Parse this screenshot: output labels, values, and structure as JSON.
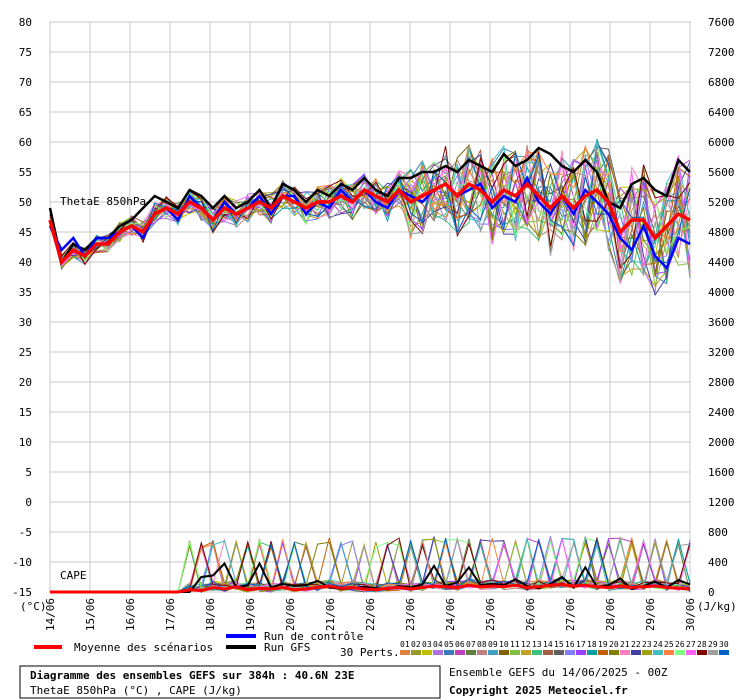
{
  "chart_data": {
    "type": "line",
    "left_axis": {
      "unit": "(°C)",
      "ticks": [
        80,
        75,
        70,
        65,
        60,
        55,
        50,
        45,
        40,
        35,
        30,
        25,
        20,
        15,
        10,
        5,
        0,
        -5,
        -10,
        -15
      ],
      "range": [
        -15,
        80
      ]
    },
    "right_axis": {
      "unit": "(J/kg)",
      "ticks": [
        7600,
        7200,
        6800,
        6400,
        6000,
        5600,
        5200,
        4800,
        4400,
        4000,
        3600,
        3200,
        2800,
        2400,
        2000,
        1600,
        1200,
        800,
        400,
        0
      ],
      "range": [
        0,
        7600
      ]
    },
    "x_labels": [
      "14/06",
      "15/06",
      "16/06",
      "17/06",
      "18/06",
      "19/06",
      "20/06",
      "21/06",
      "22/06",
      "23/06",
      "24/06",
      "25/06",
      "26/06",
      "27/06",
      "28/06",
      "29/06",
      "30/06"
    ],
    "thetae_label": "ThetaE 850hPa",
    "cape_label": "CAPE",
    "thetae_mean": [
      47,
      40,
      42,
      41,
      43,
      43,
      45,
      46,
      45,
      48,
      49,
      48,
      50,
      49,
      47,
      49,
      48,
      49,
      50,
      49,
      51,
      50,
      49,
      50,
      50,
      51,
      50,
      52,
      51,
      50,
      52,
      50,
      51,
      52,
      53,
      51,
      53,
      52,
      50,
      52,
      51,
      53,
      51,
      49,
      51,
      49,
      51,
      52,
      50,
      45,
      47,
      47,
      44,
      46,
      48,
      47
    ],
    "thetae_control": [
      46,
      42,
      44,
      41,
      44,
      44,
      45,
      46,
      44,
      48,
      49,
      47,
      51,
      49,
      47,
      50,
      48,
      49,
      51,
      48,
      51,
      51,
      48,
      50,
      49,
      52,
      50,
      52,
      50,
      49,
      52,
      51,
      50,
      52,
      53,
      51,
      52,
      53,
      49,
      51,
      50,
      54,
      50,
      48,
      51,
      48,
      52,
      50,
      48,
      44,
      42,
      46,
      41,
      39,
      44,
      43
    ],
    "thetae_gfs": [
      49,
      40,
      43,
      42,
      44,
      44,
      46,
      47,
      49,
      51,
      50,
      49,
      52,
      51,
      49,
      51,
      49,
      50,
      52,
      49,
      53,
      52,
      50,
      52,
      51,
      53,
      52,
      54,
      52,
      51,
      54,
      54,
      55,
      55,
      56,
      55,
      57,
      56,
      55,
      58,
      56,
      57,
      59,
      58,
      56,
      55,
      57,
      55,
      50,
      49,
      53,
      54,
      52,
      51,
      57,
      55
    ],
    "cape_mean": [
      0,
      0,
      0,
      0,
      0,
      0,
      0,
      0,
      0,
      0,
      0,
      0,
      30,
      20,
      60,
      40,
      70,
      30,
      50,
      40,
      60,
      30,
      40,
      60,
      80,
      50,
      60,
      40,
      30,
      50,
      60,
      40,
      60,
      80,
      70,
      60,
      90,
      70,
      80,
      70,
      90,
      60,
      70,
      90,
      100,
      80,
      90,
      70,
      60,
      80,
      60,
      70,
      80,
      60,
      50,
      40
    ],
    "cape_gfs": [
      0,
      0,
      0,
      0,
      0,
      0,
      0,
      0,
      0,
      0,
      0,
      0,
      0,
      200,
      220,
      380,
      60,
      90,
      380,
      60,
      110,
      80,
      90,
      150,
      60,
      40,
      50,
      70,
      50,
      40,
      80,
      60,
      100,
      350,
      80,
      130,
      330,
      90,
      110,
      90,
      170,
      80,
      50,
      110,
      200,
      60,
      330,
      70,
      90,
      180,
      40,
      80,
      140,
      60,
      160,
      100
    ],
    "legend": {
      "mean": "Moyenne des scénarios",
      "control": "Run de contrôle",
      "gfs": "Run GFS",
      "perts_label": "30 Perts.",
      "pert_numbers": [
        "01",
        "02",
        "03",
        "04",
        "05",
        "06",
        "07",
        "08",
        "09",
        "10",
        "11",
        "12",
        "13",
        "14",
        "15",
        "16",
        "17",
        "18",
        "19",
        "20",
        "21",
        "22",
        "23",
        "24",
        "25",
        "26",
        "27",
        "28",
        "29",
        "30"
      ],
      "pert_colors": [
        "#e0803a",
        "#9a9a2a",
        "#c0c000",
        "#b070e0",
        "#3a7ac0",
        "#c040c0",
        "#608040",
        "#c08080",
        "#40a0c0",
        "#806000",
        "#80c040",
        "#c0a020",
        "#40c080",
        "#a06040",
        "#606060",
        "#8080ff",
        "#a040ff",
        "#00a0a0",
        "#c06000",
        "#808000",
        "#ff80c0",
        "#4040a0",
        "#a0a000",
        "#40c0c0",
        "#ff8040",
        "#80ff80",
        "#ff60ff",
        "#800000",
        "#a0a0a0",
        "#0060c0"
      ]
    },
    "title_box": {
      "line1": "Diagramme des ensembles GEFS sur 384h : 40.6N 23E",
      "line2": "ThetaE 850hPa (°C) , CAPE (J/kg)"
    },
    "run_info": "Ensemble GEFS du 14/06/2025 - 00Z",
    "copyright": "Copyright 2025 Meteociel.fr"
  }
}
